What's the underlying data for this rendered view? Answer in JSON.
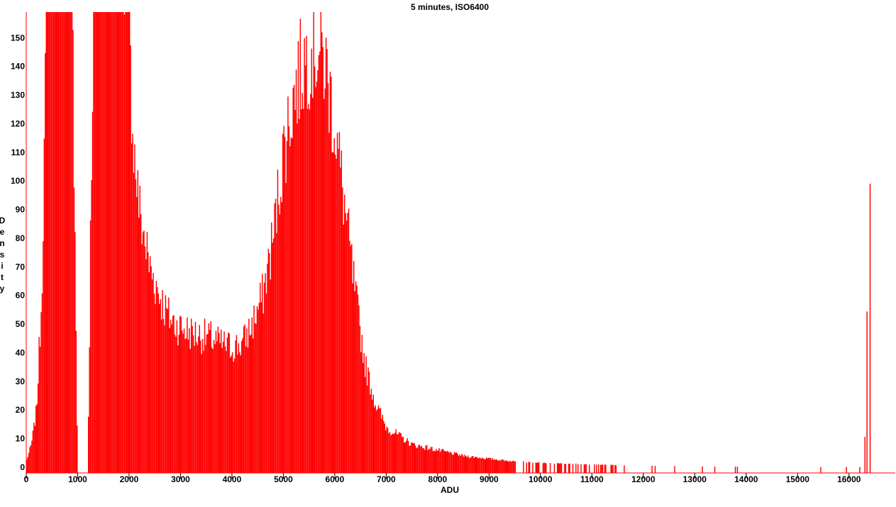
{
  "chart_data": {
    "type": "bar",
    "title": "5 minutes, ISO6400",
    "xlabel": "ADU",
    "ylabel": "Density",
    "xlim": [
      0,
      16900
    ],
    "ylim": [
      -2,
      159
    ],
    "x_ticks": [
      0,
      1000,
      2000,
      3000,
      4000,
      5000,
      6000,
      7000,
      8000,
      9000,
      10000,
      11000,
      12000,
      13000,
      14000,
      15000,
      16000
    ],
    "y_ticks": [
      0,
      10,
      20,
      30,
      40,
      50,
      60,
      70,
      80,
      90,
      100,
      110,
      120,
      130,
      140,
      150
    ],
    "grid": false,
    "legend": "none",
    "bar_color": "#ff0000",
    "axis_color": "#ff0000",
    "bin_width": 20,
    "series": [
      {
        "values_by_adu": [
          [
            0,
            2
          ],
          [
            100,
            8
          ],
          [
            200,
            20
          ],
          [
            300,
            60
          ],
          [
            400,
            159
          ],
          [
            600,
            159
          ],
          [
            700,
            159
          ],
          [
            800,
            159
          ],
          [
            900,
            159
          ],
          [
            1000,
            0
          ],
          [
            1200,
            0
          ],
          [
            1300,
            159
          ],
          [
            1400,
            159
          ],
          [
            1500,
            159
          ],
          [
            1600,
            159
          ],
          [
            1700,
            159
          ],
          [
            1800,
            159
          ],
          [
            1900,
            159
          ],
          [
            2000,
            150
          ],
          [
            2100,
            110
          ],
          [
            2200,
            90
          ],
          [
            2300,
            80
          ],
          [
            2400,
            70
          ],
          [
            2500,
            65
          ],
          [
            2600,
            60
          ],
          [
            2700,
            55
          ],
          [
            2800,
            52
          ],
          [
            2900,
            50
          ],
          [
            3000,
            49
          ],
          [
            3200,
            47
          ],
          [
            3400,
            46
          ],
          [
            3600,
            45
          ],
          [
            3800,
            43
          ],
          [
            4000,
            42
          ],
          [
            4200,
            43
          ],
          [
            4400,
            50
          ],
          [
            4600,
            60
          ],
          [
            4800,
            80
          ],
          [
            5000,
            110
          ],
          [
            5200,
            130
          ],
          [
            5400,
            142
          ],
          [
            5600,
            148
          ],
          [
            5800,
            142
          ],
          [
            6000,
            120
          ],
          [
            6200,
            90
          ],
          [
            6400,
            60
          ],
          [
            6600,
            35
          ],
          [
            6800,
            22
          ],
          [
            7000,
            14
          ],
          [
            7500,
            8
          ],
          [
            8000,
            6
          ],
          [
            8500,
            4
          ],
          [
            9000,
            3
          ],
          [
            9500,
            2
          ],
          [
            10000,
            1.5
          ],
          [
            11000,
            1
          ],
          [
            12000,
            0.5
          ],
          [
            13000,
            0.3
          ],
          [
            14000,
            0.2
          ],
          [
            15000,
            0.1
          ],
          [
            16300,
            0.1
          ],
          [
            16400,
            99
          ]
        ]
      }
    ]
  }
}
